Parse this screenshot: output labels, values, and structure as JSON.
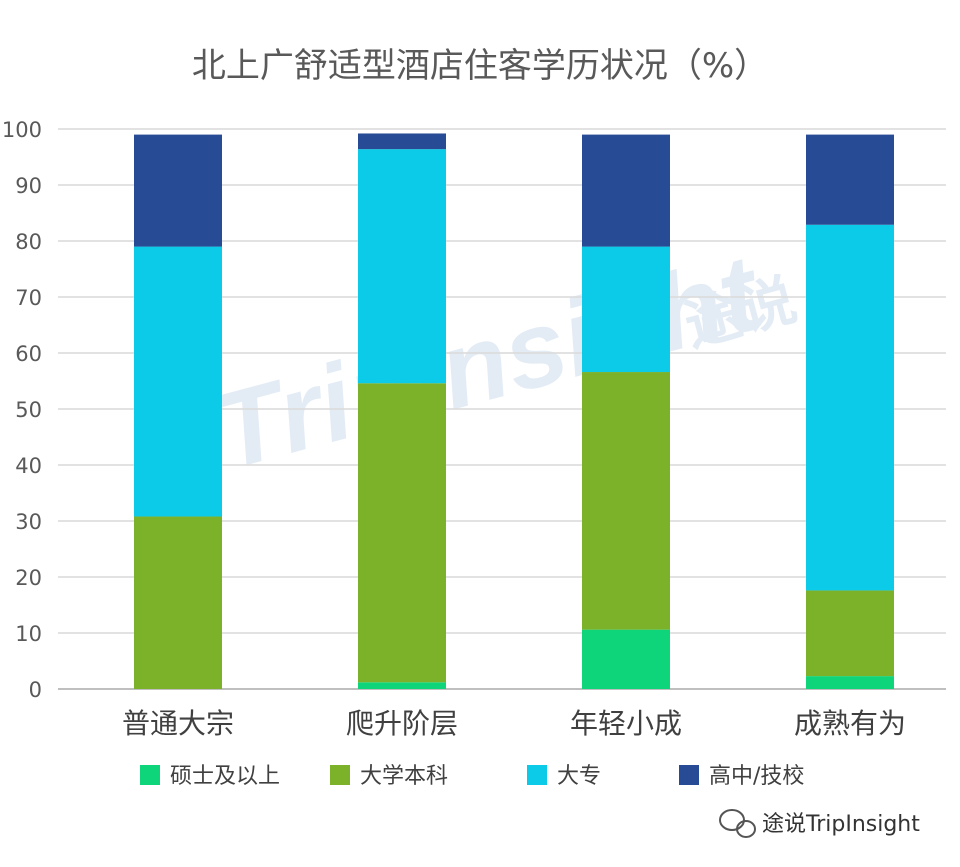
{
  "chart_data": {
    "type": "bar",
    "stacked": true,
    "title": "北上广舒适型酒店住客学历状况（%）",
    "categories": [
      "普通大宗",
      "爬升阶层",
      "年轻小成",
      "成熟有为"
    ],
    "series": [
      {
        "name": "硕士及以上",
        "color": "#0ed47a",
        "values": [
          0,
          1.2,
          10.6,
          2.3
        ]
      },
      {
        "name": "大学本科",
        "color": "#7cb22a",
        "values": [
          30.8,
          53.4,
          46.0,
          15.3
        ]
      },
      {
        "name": "大专",
        "color": "#0ccbe8",
        "values": [
          48.2,
          41.8,
          22.4,
          65.3
        ]
      },
      {
        "name": "高中/技校",
        "color": "#274b95",
        "values": [
          20.0,
          2.8,
          20.0,
          16.1
        ]
      }
    ],
    "ylim": [
      0,
      100
    ],
    "yticks": [
      0,
      10,
      20,
      30,
      40,
      50,
      60,
      70,
      80,
      90,
      100
    ],
    "grid": true,
    "legend": "bottom"
  },
  "watermark": {
    "background_text": "TripInsight",
    "background_cn": "途说",
    "corner_text": "途说TripInsight"
  }
}
